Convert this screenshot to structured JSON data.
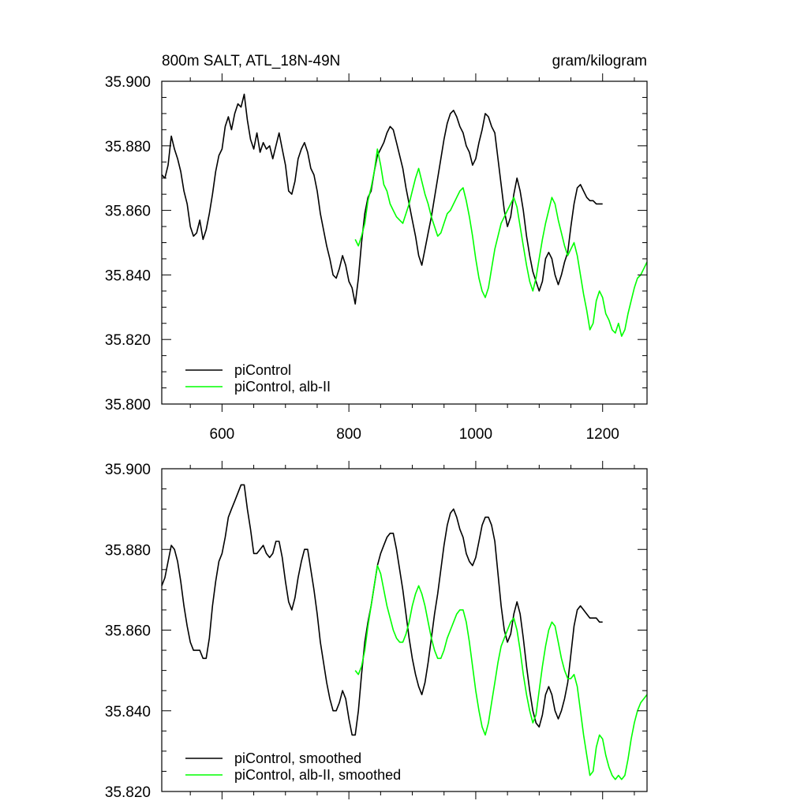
{
  "chart_data": [
    {
      "type": "line",
      "title_left": "800m SALT, ATL_18N-49N",
      "title_right": "gram/kilogram",
      "xlim": [
        505,
        1270
      ],
      "ylim": [
        35.8,
        35.9
      ],
      "x_ticks": [
        600,
        800,
        1000,
        1200
      ],
      "x_tick_labels": [
        "600",
        "800",
        "1000",
        "1200"
      ],
      "y_ticks": [
        35.8,
        35.82,
        35.84,
        35.86,
        35.88,
        35.9
      ],
      "y_tick_labels": [
        "35.800",
        "35.820",
        "35.840",
        "35.860",
        "35.880",
        "35.900"
      ],
      "legend_position": "bottom-left",
      "series": [
        {
          "name": "piControl",
          "color": "#000000",
          "x": [
            505,
            510,
            515,
            520,
            525,
            530,
            535,
            540,
            545,
            550,
            555,
            560,
            565,
            570,
            575,
            580,
            585,
            590,
            595,
            600,
            605,
            610,
            615,
            620,
            625,
            630,
            635,
            640,
            645,
            650,
            655,
            660,
            665,
            670,
            675,
            680,
            685,
            690,
            695,
            700,
            705,
            710,
            715,
            720,
            725,
            730,
            735,
            740,
            745,
            750,
            755,
            760,
            765,
            770,
            775,
            780,
            785,
            790,
            795,
            800,
            805,
            810,
            815,
            820,
            825,
            830,
            835,
            840,
            845,
            850,
            855,
            860,
            865,
            870,
            875,
            880,
            885,
            890,
            895,
            900,
            905,
            910,
            915,
            920,
            925,
            930,
            935,
            940,
            945,
            950,
            955,
            960,
            965,
            970,
            975,
            980,
            985,
            990,
            995,
            1000,
            1005,
            1010,
            1015,
            1020,
            1025,
            1030,
            1035,
            1040,
            1045,
            1050,
            1055,
            1060,
            1065,
            1070,
            1075,
            1080,
            1085,
            1090,
            1095,
            1100,
            1105,
            1110,
            1115,
            1120,
            1125,
            1130,
            1135,
            1140,
            1145,
            1150,
            1155,
            1160,
            1165,
            1170,
            1175,
            1180,
            1185,
            1190,
            1195,
            1200
          ],
          "y": [
            35.871,
            35.87,
            35.874,
            35.883,
            35.879,
            35.876,
            35.872,
            35.866,
            35.862,
            35.855,
            35.852,
            35.853,
            35.857,
            35.851,
            35.854,
            35.859,
            35.865,
            35.872,
            35.877,
            35.879,
            35.886,
            35.889,
            35.885,
            35.89,
            35.893,
            35.892,
            35.896,
            35.888,
            35.882,
            35.879,
            35.884,
            35.878,
            35.881,
            35.879,
            35.88,
            35.876,
            35.88,
            35.884,
            35.879,
            35.874,
            35.866,
            35.865,
            35.869,
            35.876,
            35.879,
            35.881,
            35.878,
            35.873,
            35.871,
            35.866,
            35.859,
            35.854,
            35.849,
            35.845,
            35.84,
            35.839,
            35.842,
            35.846,
            35.843,
            35.838,
            35.836,
            35.831,
            35.839,
            35.85,
            35.859,
            35.864,
            35.866,
            35.872,
            35.877,
            35.879,
            35.881,
            35.884,
            35.886,
            35.885,
            35.881,
            35.877,
            35.873,
            35.867,
            35.862,
            35.857,
            35.852,
            35.846,
            35.843,
            35.848,
            35.853,
            35.858,
            35.864,
            35.87,
            35.876,
            35.882,
            35.887,
            35.89,
            35.891,
            35.889,
            35.886,
            35.884,
            35.88,
            35.878,
            35.874,
            35.876,
            35.881,
            35.885,
            35.89,
            35.889,
            35.886,
            35.884,
            35.876,
            35.868,
            35.86,
            35.855,
            35.858,
            35.865,
            35.87,
            35.866,
            35.86,
            35.852,
            35.846,
            35.841,
            35.838,
            35.835,
            35.838,
            35.845,
            35.847,
            35.845,
            35.84,
            35.837,
            35.84,
            35.844,
            35.847,
            35.855,
            35.862,
            35.867,
            35.868,
            35.866,
            35.864,
            35.863,
            35.863,
            35.862,
            35.862,
            35.862
          ]
        },
        {
          "name": "piControl, alb-II",
          "color": "#00ff00",
          "x": [
            810,
            815,
            820,
            825,
            830,
            835,
            840,
            845,
            850,
            855,
            860,
            865,
            870,
            875,
            880,
            885,
            890,
            895,
            900,
            905,
            910,
            915,
            920,
            925,
            930,
            935,
            940,
            945,
            950,
            955,
            960,
            965,
            970,
            975,
            980,
            985,
            990,
            995,
            1000,
            1005,
            1010,
            1015,
            1020,
            1025,
            1030,
            1035,
            1040,
            1045,
            1050,
            1055,
            1060,
            1065,
            1070,
            1075,
            1080,
            1085,
            1090,
            1095,
            1100,
            1105,
            1110,
            1115,
            1120,
            1125,
            1130,
            1135,
            1140,
            1145,
            1150,
            1155,
            1160,
            1165,
            1170,
            1175,
            1180,
            1185,
            1190,
            1195,
            1200,
            1205,
            1210,
            1215,
            1220,
            1225,
            1230,
            1235,
            1240,
            1245,
            1250,
            1255,
            1260,
            1265,
            1270
          ],
          "y": [
            35.851,
            35.849,
            35.852,
            35.856,
            35.863,
            35.867,
            35.872,
            35.879,
            35.874,
            35.868,
            35.866,
            35.862,
            35.86,
            35.858,
            35.857,
            35.856,
            35.859,
            35.862,
            35.866,
            35.87,
            35.873,
            35.869,
            35.865,
            35.862,
            35.858,
            35.855,
            35.852,
            35.853,
            35.856,
            35.859,
            35.86,
            35.862,
            35.864,
            35.866,
            35.867,
            35.863,
            35.858,
            35.852,
            35.845,
            35.839,
            35.835,
            35.833,
            35.836,
            35.842,
            35.848,
            35.852,
            35.856,
            35.858,
            35.86,
            35.862,
            35.864,
            35.861,
            35.855,
            35.849,
            35.843,
            35.838,
            35.835,
            35.839,
            35.845,
            35.851,
            35.856,
            35.86,
            35.864,
            35.862,
            35.857,
            35.853,
            35.849,
            35.846,
            35.848,
            35.85,
            35.846,
            35.84,
            35.834,
            35.829,
            35.823,
            35.825,
            35.832,
            35.835,
            35.833,
            35.828,
            35.826,
            35.823,
            35.822,
            35.825,
            35.821,
            35.823,
            35.828,
            35.832,
            35.836,
            35.839,
            35.84,
            35.842,
            35.844
          ]
        }
      ],
      "legend": [
        "piControl",
        "piControl, alb-II"
      ]
    },
    {
      "type": "line",
      "xlim": [
        505,
        1270
      ],
      "ylim": [
        35.82,
        35.9
      ],
      "x_ticks": [
        600,
        800,
        1000,
        1200
      ],
      "y_ticks": [
        35.82,
        35.84,
        35.86,
        35.88,
        35.9
      ],
      "y_tick_labels": [
        "35.820",
        "35.840",
        "35.860",
        "35.880",
        "35.900"
      ],
      "legend_position": "bottom-left",
      "series": [
        {
          "name": "piControl, smoothed",
          "color": "#000000",
          "x": [
            505,
            510,
            515,
            520,
            525,
            530,
            535,
            540,
            545,
            550,
            555,
            560,
            565,
            570,
            575,
            580,
            585,
            590,
            595,
            600,
            605,
            610,
            615,
            620,
            625,
            630,
            635,
            640,
            645,
            650,
            655,
            660,
            665,
            670,
            675,
            680,
            685,
            690,
            695,
            700,
            705,
            710,
            715,
            720,
            725,
            730,
            735,
            740,
            745,
            750,
            755,
            760,
            765,
            770,
            775,
            780,
            785,
            790,
            795,
            800,
            805,
            810,
            815,
            820,
            825,
            830,
            835,
            840,
            845,
            850,
            855,
            860,
            865,
            870,
            875,
            880,
            885,
            890,
            895,
            900,
            905,
            910,
            915,
            920,
            925,
            930,
            935,
            940,
            945,
            950,
            955,
            960,
            965,
            970,
            975,
            980,
            985,
            990,
            995,
            1000,
            1005,
            1010,
            1015,
            1020,
            1025,
            1030,
            1035,
            1040,
            1045,
            1050,
            1055,
            1060,
            1065,
            1070,
            1075,
            1080,
            1085,
            1090,
            1095,
            1100,
            1105,
            1110,
            1115,
            1120,
            1125,
            1130,
            1135,
            1140,
            1145,
            1150,
            1155,
            1160,
            1165,
            1170,
            1175,
            1180,
            1185,
            1190,
            1195,
            1200
          ],
          "y": [
            35.871,
            35.873,
            35.877,
            35.881,
            35.88,
            35.877,
            35.872,
            35.866,
            35.861,
            35.857,
            35.855,
            35.855,
            35.855,
            35.853,
            35.853,
            35.858,
            35.866,
            35.872,
            35.877,
            35.879,
            35.883,
            35.888,
            35.89,
            35.892,
            35.894,
            35.896,
            35.896,
            35.89,
            35.885,
            35.879,
            35.879,
            35.88,
            35.881,
            35.879,
            35.878,
            35.879,
            35.882,
            35.882,
            35.878,
            35.872,
            35.867,
            35.865,
            35.868,
            35.873,
            35.877,
            35.88,
            35.88,
            35.875,
            35.87,
            35.864,
            35.857,
            35.852,
            35.847,
            35.843,
            35.84,
            35.84,
            35.842,
            35.845,
            35.843,
            35.838,
            35.834,
            35.834,
            35.84,
            35.849,
            35.857,
            35.862,
            35.866,
            35.871,
            35.876,
            35.879,
            35.881,
            35.883,
            35.884,
            35.884,
            35.88,
            35.875,
            35.87,
            35.864,
            35.858,
            35.853,
            35.849,
            35.846,
            35.844,
            35.847,
            35.852,
            35.858,
            35.864,
            35.869,
            35.875,
            35.881,
            35.886,
            35.889,
            35.89,
            35.888,
            35.885,
            35.883,
            35.879,
            35.877,
            35.876,
            35.878,
            35.882,
            35.886,
            35.888,
            35.888,
            35.886,
            35.882,
            35.874,
            35.866,
            35.86,
            35.857,
            35.859,
            35.864,
            35.867,
            35.864,
            35.858,
            35.851,
            35.845,
            35.84,
            35.837,
            35.836,
            35.839,
            35.844,
            35.846,
            35.844,
            35.84,
            35.838,
            35.84,
            35.843,
            35.847,
            35.854,
            35.861,
            35.865,
            35.866,
            35.865,
            35.864,
            35.863,
            35.863,
            35.863,
            35.862,
            35.862
          ]
        },
        {
          "name": "piControl, alb-II, smoothed",
          "color": "#00ff00",
          "x": [
            810,
            815,
            820,
            825,
            830,
            835,
            840,
            845,
            850,
            855,
            860,
            865,
            870,
            875,
            880,
            885,
            890,
            895,
            900,
            905,
            910,
            915,
            920,
            925,
            930,
            935,
            940,
            945,
            950,
            955,
            960,
            965,
            970,
            975,
            980,
            985,
            990,
            995,
            1000,
            1005,
            1010,
            1015,
            1020,
            1025,
            1030,
            1035,
            1040,
            1045,
            1050,
            1055,
            1060,
            1065,
            1070,
            1075,
            1080,
            1085,
            1090,
            1095,
            1100,
            1105,
            1110,
            1115,
            1120,
            1125,
            1130,
            1135,
            1140,
            1145,
            1150,
            1155,
            1160,
            1165,
            1170,
            1175,
            1180,
            1185,
            1190,
            1195,
            1200,
            1205,
            1210,
            1215,
            1220,
            1225,
            1230,
            1235,
            1240,
            1245,
            1250,
            1255,
            1260,
            1265,
            1270
          ],
          "y": [
            35.85,
            35.849,
            35.851,
            35.855,
            35.861,
            35.866,
            35.871,
            35.876,
            35.874,
            35.87,
            35.866,
            35.863,
            35.86,
            35.858,
            35.857,
            35.857,
            35.859,
            35.862,
            35.866,
            35.869,
            35.871,
            35.869,
            35.866,
            35.862,
            35.858,
            35.855,
            35.853,
            35.853,
            35.855,
            35.858,
            35.86,
            35.862,
            35.864,
            35.865,
            35.865,
            35.862,
            35.857,
            35.851,
            35.845,
            35.84,
            35.836,
            35.834,
            35.837,
            35.842,
            35.847,
            35.852,
            35.856,
            35.858,
            35.86,
            35.862,
            35.863,
            35.86,
            35.855,
            35.849,
            35.844,
            35.84,
            35.837,
            35.839,
            35.845,
            35.851,
            35.856,
            35.86,
            35.862,
            35.861,
            35.857,
            35.853,
            35.85,
            35.848,
            35.848,
            35.849,
            35.846,
            35.84,
            35.834,
            35.829,
            35.824,
            35.825,
            35.831,
            35.834,
            35.833,
            35.829,
            35.826,
            35.824,
            35.823,
            35.824,
            35.823,
            35.824,
            35.828,
            35.833,
            35.837,
            35.84,
            35.842,
            35.843,
            35.844
          ]
        }
      ],
      "legend": [
        "piControl, smoothed",
        "piControl, alb-II, smoothed"
      ]
    }
  ]
}
